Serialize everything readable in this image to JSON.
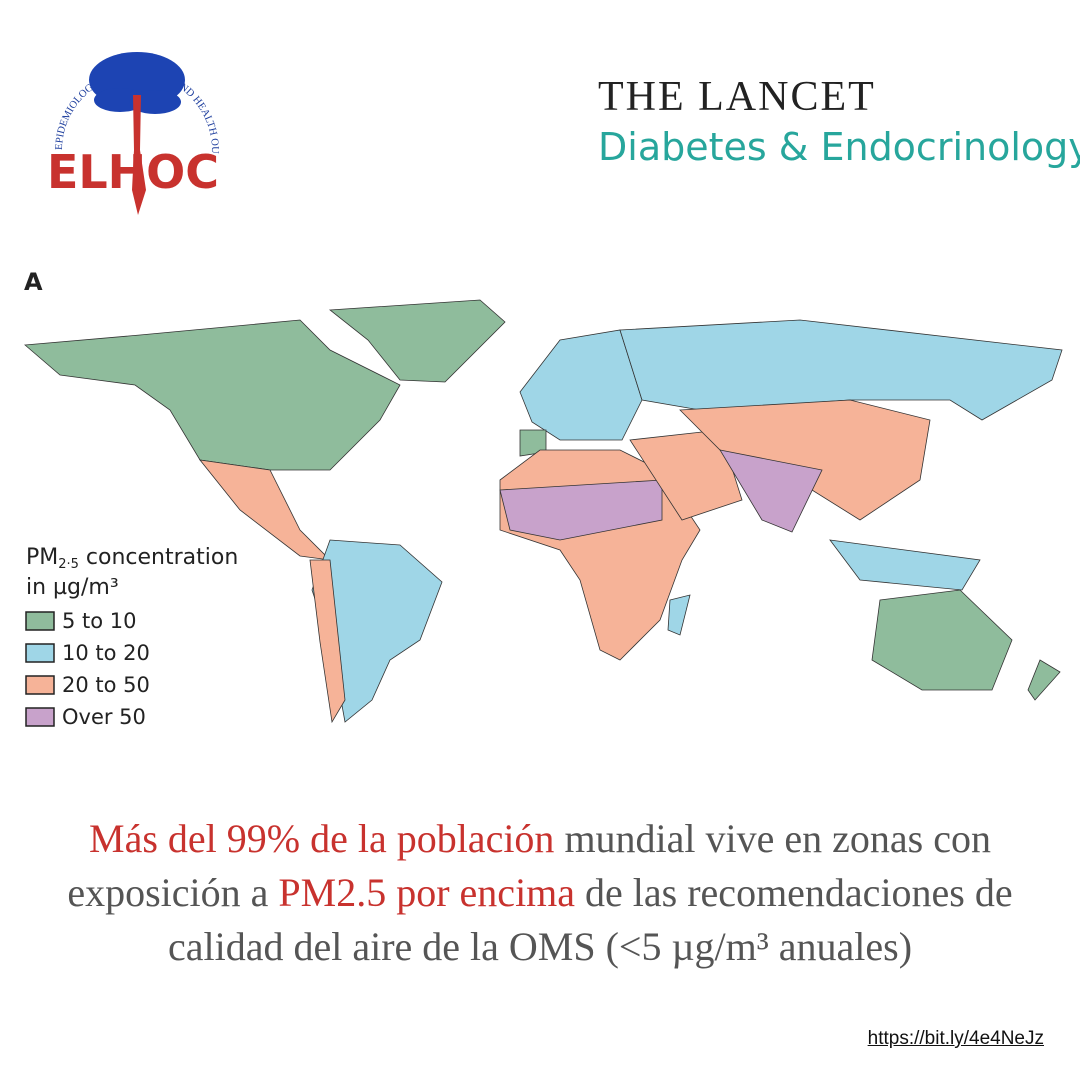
{
  "logo": {
    "arc_text": "EPIDEMIOLOGY OF LIFESTYLE AND HEALTH OUTCOMES IN CHILE",
    "name": "ELHOC"
  },
  "journal": {
    "title": "THE LANCET",
    "subtitle": "Diabetes & Endocrinology"
  },
  "map": {
    "panel_label": "A",
    "legend": {
      "title_main": "PM",
      "title_sub": "2·5",
      "title_rest": " concentration",
      "title_line2": "in µg/m³",
      "items": [
        {
          "label": "5 to 10",
          "color": "#8fbc9c"
        },
        {
          "label": "10 to 20",
          "color": "#9fd6e7"
        },
        {
          "label": "20 to 50",
          "color": "#f6b398"
        },
        {
          "label": "Over 50",
          "color": "#c8a2cb"
        }
      ]
    }
  },
  "caption": {
    "parts": [
      {
        "text": "Más del 99% de la población",
        "highlight": true
      },
      {
        "text": " mundial vive en zonas con exposición a ",
        "highlight": false
      },
      {
        "text": "PM2.5 por encima",
        "highlight": true
      },
      {
        "text": " de las recomendaciones de calidad del aire de la OMS (<5 µg/m³ anuales)",
        "highlight": false
      }
    ]
  },
  "link": "https://bit.ly/4e4NeJz"
}
